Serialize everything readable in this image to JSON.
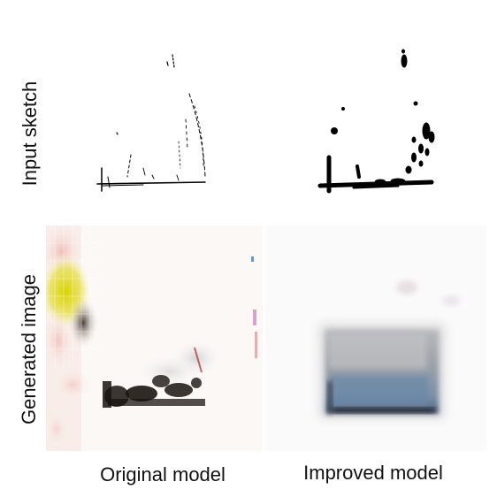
{
  "row_labels": {
    "top": "Input sketch",
    "bottom": "Generated image"
  },
  "column_labels": {
    "left": "Original model",
    "right": "Improved model"
  },
  "panels": {
    "original_sketch": "sparse-faint-sketch",
    "improved_sketch": "bold-sketch",
    "original_generated": "noisy-colorful-generated-image",
    "improved_generated": "blurry-blue-grey-box-generated-image"
  }
}
